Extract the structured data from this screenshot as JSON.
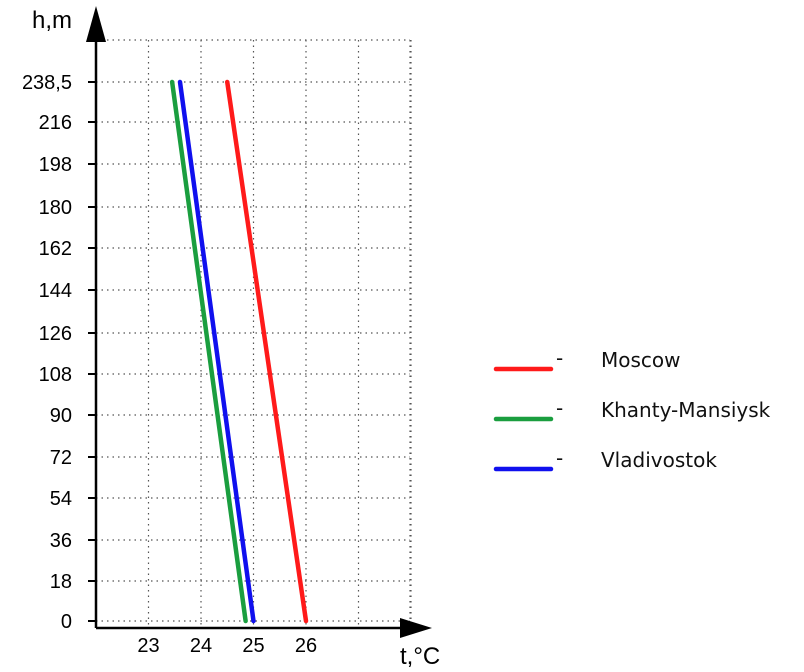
{
  "chart_data": {
    "type": "line",
    "xlabel": "t,°C",
    "ylabel": "h,m",
    "xlim": [
      22,
      27
    ],
    "y_ticks": [
      "0",
      "18",
      "36",
      "54",
      "72",
      "90",
      "108",
      "126",
      "144",
      "162",
      "180",
      "198",
      "216",
      "238,5"
    ],
    "x_ticks": [
      "23",
      "24",
      "25",
      "26"
    ],
    "grid": true,
    "legend_position": "right",
    "series": [
      {
        "name": "Moscow",
        "color": "#ff1a1a",
        "points": [
          [
            26.0,
            0
          ],
          [
            24.5,
            238.5
          ]
        ]
      },
      {
        "name": "Khanty-Mansiysk",
        "color": "#1a9e3f",
        "points": [
          [
            24.85,
            0
          ],
          [
            23.45,
            238.5
          ]
        ]
      },
      {
        "name": "Vladivostok",
        "color": "#1010ee",
        "points": [
          [
            25.0,
            0
          ],
          [
            23.6,
            238.5
          ]
        ]
      }
    ],
    "legend_marker": "-"
  }
}
